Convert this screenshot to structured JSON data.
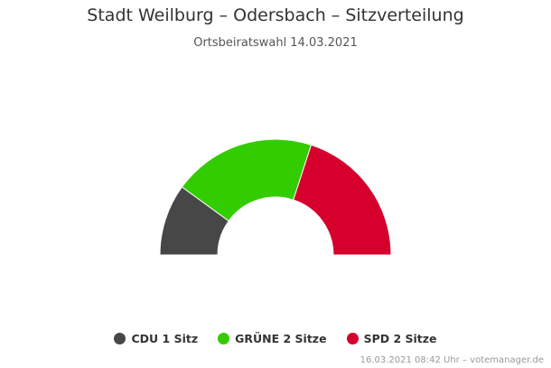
{
  "title": "Stadt Weilburg – Odersbach – Sitzverteilung",
  "subtitle": "Ortsbeiratswahl 14.03.2021",
  "credits": "16.03.2021 08:42 Uhr – votemanager.de",
  "chart_data": {
    "type": "pie",
    "variant": "semi-donut",
    "title": "Stadt Weilburg – Odersbach – Sitzverteilung",
    "subtitle": "Ortsbeiratswahl 14.03.2021",
    "series": [
      {
        "name": "CDU",
        "seats": 1,
        "label": "CDU 1 Sitz",
        "color": "#474747"
      },
      {
        "name": "GRÜNE",
        "seats": 2,
        "label": "GRÜNE 2 Sitze",
        "color": "#33cc00"
      },
      {
        "name": "SPD",
        "seats": 2,
        "label": "SPD 2 Sitze",
        "color": "#d5002c"
      }
    ],
    "legend_position": "bottom"
  }
}
